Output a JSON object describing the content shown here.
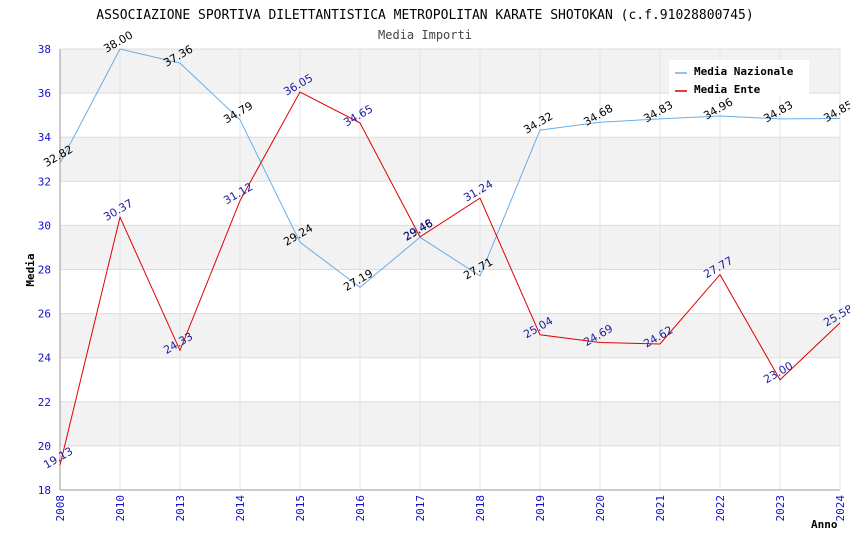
{
  "chart_data": {
    "type": "line",
    "title": "ASSOCIAZIONE SPORTIVA DILETTANTISTICA METROPOLITAN KARATE SHOTOKAN (c.f.91028800745)",
    "subtitle": "Media Importi",
    "xlabel": "Anno",
    "ylabel": "Media",
    "ylim": [
      18,
      38
    ],
    "yticks": [
      "18",
      "20",
      "22",
      "24",
      "26",
      "28",
      "30",
      "32",
      "34",
      "36",
      "38"
    ],
    "categories": [
      "2008",
      "2010",
      "2013",
      "2014",
      "2015",
      "2016",
      "2017",
      "2018",
      "2019",
      "2020",
      "2021",
      "2022",
      "2023",
      "2024"
    ],
    "grid": true,
    "legend_position": "top-right",
    "series": [
      {
        "name": "Media Nazionale",
        "color": "#6aaee8",
        "values": [
          32.82,
          38.0,
          37.36,
          34.79,
          29.24,
          27.19,
          29.46,
          27.71,
          34.32,
          34.68,
          34.83,
          34.96,
          34.83,
          34.85
        ],
        "labels": [
          "32.82",
          "38.00",
          "37.36",
          "34.79",
          "29.24",
          "27.19",
          "29.46",
          "27.71",
          "34.32",
          "34.68",
          "34.83",
          "34.96",
          "34.83",
          "34.85"
        ]
      },
      {
        "name": "Media Ente",
        "color": "#e00000",
        "values": [
          19.13,
          30.37,
          24.33,
          31.12,
          36.05,
          34.65,
          29.48,
          31.24,
          25.04,
          24.69,
          24.62,
          27.77,
          23.0,
          25.58
        ],
        "labels": [
          "19.13",
          "30.37",
          "24.33",
          "31.12",
          "36.05",
          "34.65",
          "29.48",
          "31.24",
          "25.04",
          "24.69",
          "24.62",
          "27.77",
          "23.00",
          "25.58"
        ]
      }
    ]
  }
}
